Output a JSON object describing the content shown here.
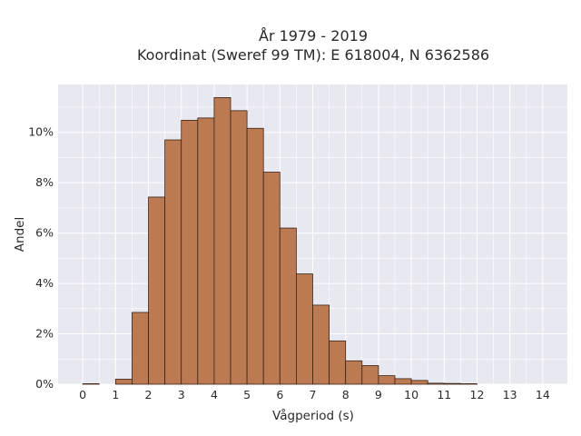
{
  "chart_data": {
    "type": "bar",
    "title_line1": "År 1979 - 2019",
    "title_line2": "Koordinat (Sweref 99 TM): E 618004, N 6362586",
    "xlabel": "Vågperiod (s)",
    "ylabel": "Andel",
    "x_ticks": [
      "0",
      "1",
      "2",
      "3",
      "4",
      "5",
      "6",
      "7",
      "8",
      "9",
      "10",
      "11",
      "12",
      "13",
      "14"
    ],
    "y_ticks": [
      "0%",
      "2%",
      "4%",
      "6%",
      "8%",
      "10%"
    ],
    "y_tick_values": [
      0,
      2,
      4,
      6,
      8,
      10
    ],
    "xlim": [
      -0.75,
      14.75
    ],
    "ylim": [
      0,
      11.9
    ],
    "bin_width": 0.5,
    "bin_starts": [
      0,
      1,
      1.5,
      2,
      2.5,
      3,
      3.5,
      4,
      4.5,
      5,
      5.5,
      6,
      6.5,
      7,
      7.5,
      8,
      8.5,
      9,
      9.5,
      10,
      10.5,
      11,
      11.5
    ],
    "values": [
      0.02,
      0.2,
      2.85,
      7.43,
      9.7,
      10.48,
      10.57,
      11.38,
      10.86,
      10.16,
      8.42,
      6.2,
      4.38,
      3.14,
      1.72,
      0.93,
      0.74,
      0.34,
      0.22,
      0.15,
      0.04,
      0.03,
      0.02
    ],
    "grid": true,
    "colors": {
      "bar_fill": "#bc7a53",
      "bar_edge": "#3a2418",
      "plot_background": "#e8e8f1",
      "grid": "#ffffff"
    }
  }
}
